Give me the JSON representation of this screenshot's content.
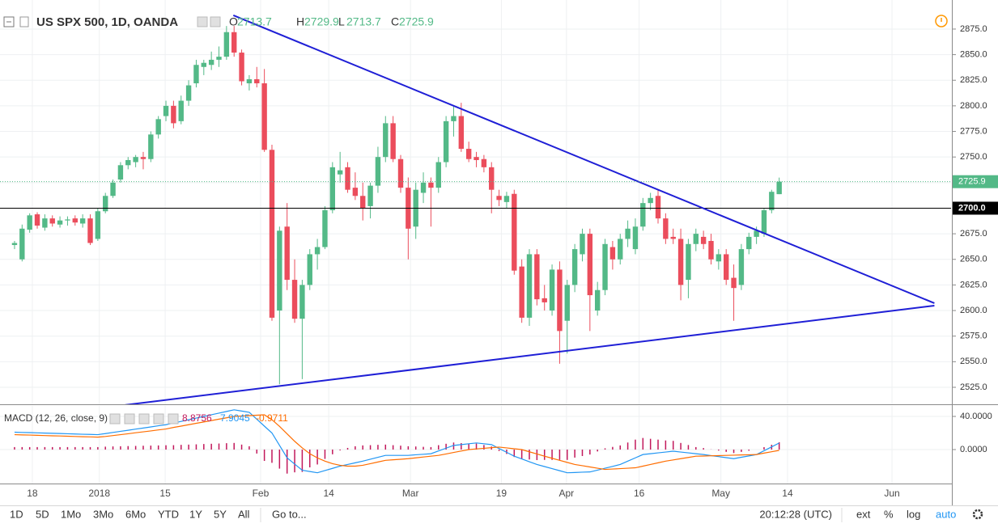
{
  "chart_data": [
    {
      "type": "candlestick",
      "title": "US SPX 500, 1D, OANDA",
      "ohlc_legend": [
        {
          "label": "O",
          "value": 2713.7
        },
        {
          "label": "H",
          "value": 2729.9
        },
        {
          "label": "L",
          "value": 2713.7
        },
        {
          "label": "C",
          "value": 2725.9
        }
      ],
      "series": [
        {
          "up_color": "#53b987",
          "down_color": "#eb4d5c",
          "open": [
            2664,
            2650,
            2679,
            2694,
            2681,
            2690,
            2684,
            2688,
            2690,
            2685,
            2690,
            2670,
            2697,
            2712,
            2728,
            2742,
            2745,
            2750,
            2748,
            2772,
            2790,
            2800,
            2785,
            2805,
            2822,
            2838,
            2840,
            2845,
            2848,
            2872,
            2852,
            2822,
            2826,
            2822,
            2757,
            2600,
            2682,
            2630,
            2592,
            2625,
            2655,
            2662,
            2698,
            2733,
            2740,
            2720,
            2712,
            2702,
            2722,
            2750,
            2783,
            2748,
            2720,
            2682,
            2715,
            2725,
            2720,
            2745,
            2785,
            2790,
            2758,
            2750,
            2748,
            2740,
            2712,
            2706,
            2714,
            2643,
            2593,
            2655,
            2612,
            2600,
            2640,
            2590,
            2625,
            2655,
            2675,
            2600,
            2620,
            2662,
            2650,
            2670,
            2660,
            2682,
            2705,
            2712,
            2690,
            2672,
            2670,
            2630,
            2665,
            2672,
            2668,
            2648,
            2655,
            2632,
            2625,
            2660,
            2672,
            2675,
            2698,
            2713.7
          ],
          "high": [
            2668,
            2684,
            2695,
            2696,
            2694,
            2693,
            2692,
            2692,
            2693,
            2694,
            2694,
            2700,
            2715,
            2728,
            2745,
            2750,
            2752,
            2755,
            2775,
            2790,
            2805,
            2805,
            2810,
            2825,
            2845,
            2845,
            2853,
            2858,
            2878,
            2878,
            2855,
            2830,
            2838,
            2836,
            2762,
            2682,
            2705,
            2650,
            2630,
            2660,
            2670,
            2702,
            2745,
            2755,
            2745,
            2735,
            2725,
            2725,
            2760,
            2790,
            2790,
            2752,
            2730,
            2725,
            2735,
            2730,
            2750,
            2790,
            2800,
            2803,
            2765,
            2755,
            2752,
            2745,
            2718,
            2716,
            2718,
            2650,
            2660,
            2660,
            2625,
            2645,
            2648,
            2630,
            2665,
            2680,
            2680,
            2628,
            2670,
            2668,
            2675,
            2688,
            2690,
            2710,
            2715,
            2718,
            2695,
            2680,
            2680,
            2670,
            2680,
            2678,
            2675,
            2660,
            2660,
            2645,
            2665,
            2676,
            2682,
            2700,
            2718,
            2729.9
          ],
          "low": [
            2660,
            2648,
            2676,
            2680,
            2678,
            2682,
            2681,
            2683,
            2683,
            2681,
            2664,
            2668,
            2695,
            2710,
            2725,
            2738,
            2740,
            2738,
            2745,
            2768,
            2785,
            2778,
            2782,
            2800,
            2818,
            2830,
            2835,
            2838,
            2845,
            2848,
            2820,
            2815,
            2818,
            2755,
            2590,
            2528,
            2620,
            2588,
            2533,
            2620,
            2640,
            2660,
            2695,
            2725,
            2715,
            2708,
            2688,
            2690,
            2715,
            2745,
            2745,
            2715,
            2650,
            2670,
            2705,
            2682,
            2715,
            2740,
            2770,
            2755,
            2745,
            2740,
            2735,
            2695,
            2702,
            2700,
            2635,
            2588,
            2585,
            2605,
            2600,
            2595,
            2548,
            2558,
            2618,
            2648,
            2580,
            2595,
            2615,
            2640,
            2645,
            2662,
            2655,
            2678,
            2698,
            2685,
            2665,
            2665,
            2610,
            2612,
            2658,
            2660,
            2645,
            2640,
            2625,
            2590,
            2620,
            2655,
            2665,
            2672,
            2695,
            2713.7
          ],
          "close": [
            2666,
            2680,
            2693,
            2683,
            2690,
            2685,
            2688,
            2689,
            2686,
            2690,
            2666,
            2697,
            2712,
            2725,
            2742,
            2747,
            2750,
            2748,
            2772,
            2787,
            2800,
            2783,
            2805,
            2820,
            2840,
            2842,
            2845,
            2848,
            2872,
            2852,
            2824,
            2826,
            2822,
            2757,
            2593,
            2678,
            2630,
            2592,
            2625,
            2655,
            2662,
            2698,
            2740,
            2737,
            2718,
            2712,
            2700,
            2722,
            2750,
            2783,
            2748,
            2720,
            2680,
            2718,
            2725,
            2720,
            2745,
            2785,
            2790,
            2758,
            2748,
            2747,
            2740,
            2718,
            2708,
            2712,
            2639,
            2593,
            2655,
            2611,
            2608,
            2640,
            2580,
            2625,
            2660,
            2675,
            2615,
            2620,
            2665,
            2650,
            2670,
            2680,
            2682,
            2705,
            2710,
            2690,
            2670,
            2670,
            2625,
            2665,
            2675,
            2665,
            2650,
            2655,
            2630,
            2622,
            2660,
            2672,
            2678,
            2698,
            2716,
            2725.9
          ]
        }
      ],
      "xlim": [
        -1.92,
        123.7
      ],
      "xticks": [
        {
          "value": 2.35,
          "label": "18"
        },
        {
          "value": 11.2,
          "label": "2018"
        },
        {
          "value": 19.9,
          "label": "15"
        },
        {
          "value": 32.5,
          "label": "Feb"
        },
        {
          "value": 41.5,
          "label": "14"
        },
        {
          "value": 52.3,
          "label": "Mar"
        },
        {
          "value": 64.3,
          "label": "19"
        },
        {
          "value": 72.9,
          "label": "Apr"
        },
        {
          "value": 82.5,
          "label": "16"
        },
        {
          "value": 93.3,
          "label": "May"
        },
        {
          "value": 102.1,
          "label": "14"
        },
        {
          "value": 115.9,
          "label": "Jun"
        }
      ],
      "ylim": [
        2508.4,
        2903.4
      ],
      "yticks": [
        {
          "value": 2525,
          "label": "2525.0"
        },
        {
          "value": 2550,
          "label": "2550.0"
        },
        {
          "value": 2575,
          "label": "2575.0"
        },
        {
          "value": 2600,
          "label": "2600.0"
        },
        {
          "value": 2625,
          "label": "2625.0"
        },
        {
          "value": 2650,
          "label": "2650.0"
        },
        {
          "value": 2675,
          "label": "2675.0"
        },
        {
          "value": 2700,
          "label": "2700.0"
        },
        {
          "value": 2725,
          "label": "2725.0"
        },
        {
          "value": 2750,
          "label": "2750.0"
        },
        {
          "value": 2775,
          "label": "2775.0"
        },
        {
          "value": 2800,
          "label": "2800.0"
        },
        {
          "value": 2825,
          "label": "2825.0"
        },
        {
          "value": 2850,
          "label": "2850.0"
        },
        {
          "value": 2875,
          "label": "2875.0"
        }
      ],
      "grid": true,
      "trend_color": "#1f1fd6",
      "trend_lines": [
        {
          "x": [
            28.9,
            121.5
          ],
          "y": [
            2888.4,
            2607.2
          ]
        },
        {
          "x": [
            14.6,
            121.5
          ],
          "y": [
            2507.7,
            2604.8
          ]
        }
      ],
      "hline": {
        "value": 2700,
        "label": "2700.0",
        "color": "#000000"
      },
      "last_price": 2725.9
    },
    {
      "type": "macd",
      "title": "MACD (12, 26, close, 9)",
      "series": [
        {
          "style": "histogram",
          "color": "#c2185b",
          "values": [
            3,
            3,
            3,
            3,
            3,
            3,
            3,
            3,
            3,
            3,
            3,
            3,
            3.5,
            3.8,
            4,
            4.2,
            4.4,
            4.6,
            4.8,
            5,
            5.2,
            5.3,
            5.7,
            6,
            6.3,
            6.7,
            7,
            7.3,
            7.7,
            8,
            6,
            4,
            -4.8,
            -13.7,
            -16,
            -23,
            -29,
            -27.5,
            -27,
            -21.5,
            -18,
            -11.3,
            -5.7,
            -1,
            2,
            4,
            5,
            5.3,
            5.7,
            6,
            5.3,
            4.7,
            4,
            3.7,
            3.3,
            3,
            5.3,
            7,
            8.5,
            7.8,
            7,
            7.2,
            5.5,
            3.7,
            -1.7,
            -5.3,
            -9,
            -11.3,
            -12,
            -12.7,
            -12.5,
            -12.5,
            -12.5,
            -12.5,
            -9.7,
            -7.8,
            -6,
            -2.3,
            1.5,
            3.2,
            5,
            8.5,
            12,
            14,
            13,
            12,
            11,
            10.5,
            8,
            5.5,
            3,
            1.8,
            0.2,
            -1.2,
            -2.8,
            -4.2,
            -2.8,
            -1.4,
            0,
            2.9,
            5.8,
            8.8756
          ]
        },
        {
          "style": "line",
          "color": "#2196f3",
          "values": [
            21,
            20.7,
            20.5,
            20.2,
            19.9,
            19.6,
            19.4,
            19.1,
            18.8,
            18.5,
            18.3,
            18,
            19.3,
            20.7,
            22,
            23.3,
            24.7,
            26,
            27.3,
            28.7,
            30,
            32,
            34,
            36,
            38,
            40,
            42,
            44,
            46,
            48,
            46.5,
            45,
            36.7,
            28.3,
            20,
            5,
            -10,
            -17.5,
            -25,
            -26.5,
            -28,
            -25.3,
            -22.7,
            -20,
            -18,
            -16,
            -14,
            -11.7,
            -9.3,
            -7,
            -7,
            -7,
            -7,
            -6.3,
            -5.7,
            -5,
            -1.7,
            1.7,
            5,
            6,
            7,
            8,
            7,
            6,
            1.3,
            -3.3,
            -8,
            -11.3,
            -14.7,
            -18,
            -20.5,
            -23,
            -25.5,
            -28,
            -27.7,
            -27.3,
            -27,
            -24.8,
            -22.5,
            -20.3,
            -18,
            -14,
            -10,
            -6,
            -5,
            -4,
            -3,
            -2,
            -3,
            -4,
            -5,
            -6,
            -7.3,
            -8.5,
            -9.8,
            -11,
            -9.3,
            -7.7,
            -6,
            -1.4,
            3.2,
            7.9045
          ]
        },
        {
          "style": "line",
          "color": "#ff6d00",
          "values": [
            18,
            17.7,
            17.5,
            17.2,
            16.9,
            16.6,
            16.4,
            16.1,
            15.8,
            15.5,
            15.3,
            15,
            15.8,
            16.9,
            18,
            19.1,
            20.3,
            21.4,
            22.5,
            23.7,
            24.8,
            26.7,
            28.3,
            30,
            31.7,
            33.3,
            35,
            36.7,
            38.3,
            40,
            40.5,
            41,
            41.5,
            42,
            36,
            28,
            19,
            10,
            2,
            -5,
            -10,
            -14,
            -17,
            -19,
            -20,
            -20,
            -19,
            -17,
            -15,
            -13,
            -12.3,
            -11.7,
            -11,
            -10,
            -9,
            -8,
            -7,
            -5.3,
            -3.5,
            -1.8,
            0,
            0.8,
            1.5,
            2.3,
            3,
            2,
            1,
            0,
            -2.7,
            -5.3,
            -8,
            -10.5,
            -13,
            -15.5,
            -18,
            -19.5,
            -21,
            -22.5,
            -24,
            -23.5,
            -23,
            -22.5,
            -22,
            -20,
            -18,
            -16,
            -14,
            -12.5,
            -11,
            -9.5,
            -8,
            -7.8,
            -7.5,
            -7.3,
            -7,
            -6.8,
            -6.5,
            -6.3,
            -6,
            -4.3,
            -2.6,
            -0.9711
          ]
        }
      ],
      "ylim": [
        -41,
        52.7
      ],
      "yticks": [
        {
          "value": 40,
          "label": "40.0000"
        },
        {
          "value": 0,
          "label": "0.0000"
        }
      ],
      "grid": true
    }
  ],
  "toolbar": {
    "ranges": [
      "1D",
      "5D",
      "1Mo",
      "3Mo",
      "6Mo",
      "YTD",
      "1Y",
      "5Y",
      "All"
    ],
    "goto": "Go to...",
    "clock": "20:12:28 (UTC)",
    "options": [
      "ext",
      "%",
      "log",
      "auto"
    ]
  }
}
